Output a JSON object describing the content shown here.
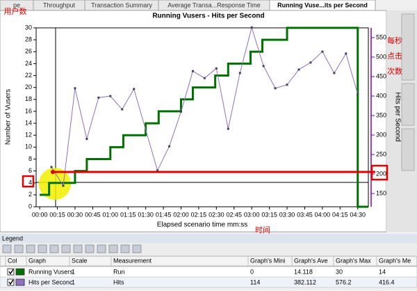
{
  "tabs": [
    "pe",
    "Throughput",
    "Transaction Summary",
    "Average Transa...Response Time",
    "Running Vuse...its per Second"
  ],
  "chart_data": {
    "type": "line",
    "title": "Running Vusers - Hits per Second",
    "x_label": "Elapsed scenario time mm:ss",
    "y_label": "Number of Vusers",
    "y2_label": "Hits per Second",
    "xlim": [
      -3,
      279
    ],
    "xticks": [
      {
        "value": 0,
        "label": "00:00"
      },
      {
        "value": 15,
        "label": "00:15"
      },
      {
        "value": 30,
        "label": "00:30"
      },
      {
        "value": 45,
        "label": "00:45"
      },
      {
        "value": 60,
        "label": "01:00"
      },
      {
        "value": 75,
        "label": "01:15"
      },
      {
        "value": 90,
        "label": "01:30"
      },
      {
        "value": 105,
        "label": "01:45"
      },
      {
        "value": 120,
        "label": "02:00"
      },
      {
        "value": 135,
        "label": "02:15"
      },
      {
        "value": 150,
        "label": "02:30"
      },
      {
        "value": 165,
        "label": "02:45"
      },
      {
        "value": 180,
        "label": "03:00"
      },
      {
        "value": 195,
        "label": "03:15"
      },
      {
        "value": 210,
        "label": "03:30"
      },
      {
        "value": 225,
        "label": "03:45"
      },
      {
        "value": 240,
        "label": "04:00"
      },
      {
        "value": 255,
        "label": "04:15"
      },
      {
        "value": 270,
        "label": "04:30"
      }
    ],
    "ylim": [
      0,
      30
    ],
    "yticks": [
      0,
      2,
      4,
      6,
      8,
      10,
      12,
      14,
      16,
      18,
      20,
      22,
      24,
      26,
      28,
      30
    ],
    "y2lim": [
      116,
      575
    ],
    "y2ticks": [
      150,
      200,
      250,
      300,
      350,
      400,
      450,
      500,
      550
    ],
    "series": [
      {
        "name": "Running Vusers",
        "color": "#007000",
        "step": true,
        "x": [
          0,
          8,
          30,
          40,
          60,
          71,
          90,
          101,
          120,
          130,
          149,
          160,
          179,
          189,
          210,
          270,
          279
        ],
        "values": [
          2,
          4,
          6,
          8,
          10,
          12,
          14,
          16,
          18,
          20,
          22,
          24,
          26,
          28,
          30,
          0,
          0
        ]
      },
      {
        "name": "Hits per Seconc",
        "color": "#9070c0",
        "axis": "y2",
        "x": [
          10,
          20,
          30,
          40,
          50,
          60,
          70,
          80,
          100,
          110,
          120,
          130,
          140,
          150,
          160,
          170,
          180,
          190,
          200,
          210,
          220,
          230,
          240,
          250,
          260,
          270
        ],
        "values": [
          218,
          170,
          420,
          290,
          396,
          400,
          366,
          418,
          209,
          271,
          360,
          464,
          446,
          471,
          316,
          459,
          576,
          477,
          420,
          429,
          468,
          486,
          514,
          459,
          509,
          405
        ]
      }
    ],
    "annotations": [
      "用户数",
      "每秒",
      "点击",
      "次数",
      "时间"
    ]
  },
  "legend_panel": {
    "title": "Legend",
    "columns": [
      "Col",
      "Graph",
      "Scale",
      "Measurement",
      "Graph's Mini",
      "Graph's Ave",
      "Graph's Max",
      "Graph's Me"
    ],
    "rows": [
      [
        1,
        "Run",
        0,
        14.118,
        30,
        14
      ],
      [
        1,
        "Hits",
        114,
        382.112,
        576.2,
        416.4
      ]
    ]
  }
}
